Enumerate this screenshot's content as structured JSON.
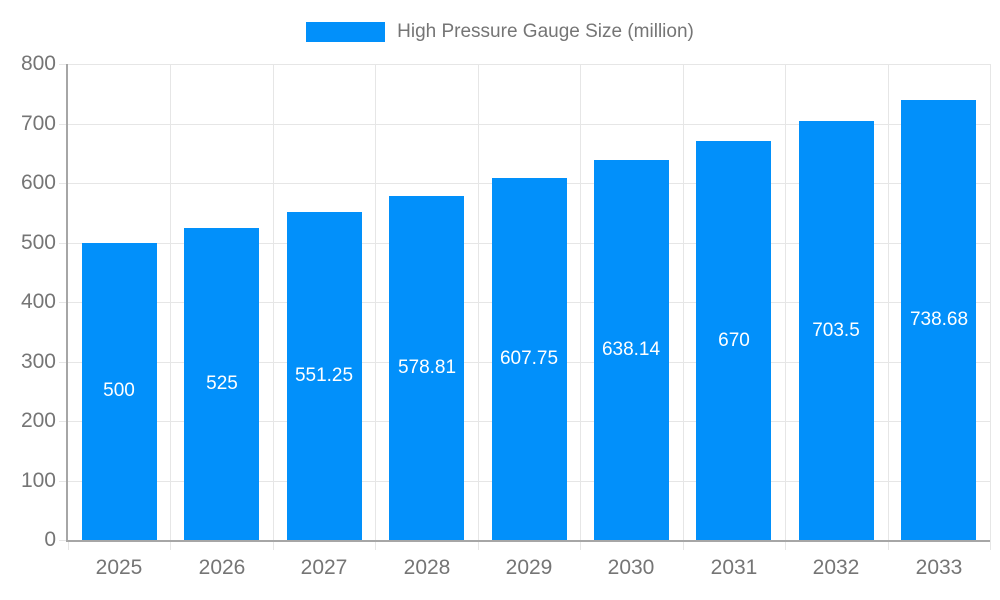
{
  "chart_data": {
    "type": "bar",
    "title": "High Pressure Gauge Size (million)",
    "categories": [
      "2025",
      "2026",
      "2027",
      "2028",
      "2029",
      "2030",
      "2031",
      "2032",
      "2033"
    ],
    "values": [
      500,
      525,
      551.25,
      578.81,
      607.75,
      638.14,
      670,
      703.5,
      738.68
    ],
    "value_labels": [
      "500",
      "525",
      "551.25",
      "578.81",
      "607.75",
      "638.14",
      "670",
      "703.5",
      "738.68"
    ],
    "xlabel": "",
    "ylabel": "",
    "ylim": [
      0,
      800
    ],
    "ytick_step": 100,
    "ytick_labels": [
      "0",
      "100",
      "200",
      "300",
      "400",
      "500",
      "600",
      "700",
      "800"
    ],
    "grid": true,
    "legend_position": "top-center",
    "colors": {
      "bar": "#0290fa",
      "value_label": "#ffffff",
      "axis_text": "#757575",
      "grid_line": "#e6e6e6",
      "axis_line": "#a6a6a6",
      "background": "#ffffff"
    }
  }
}
